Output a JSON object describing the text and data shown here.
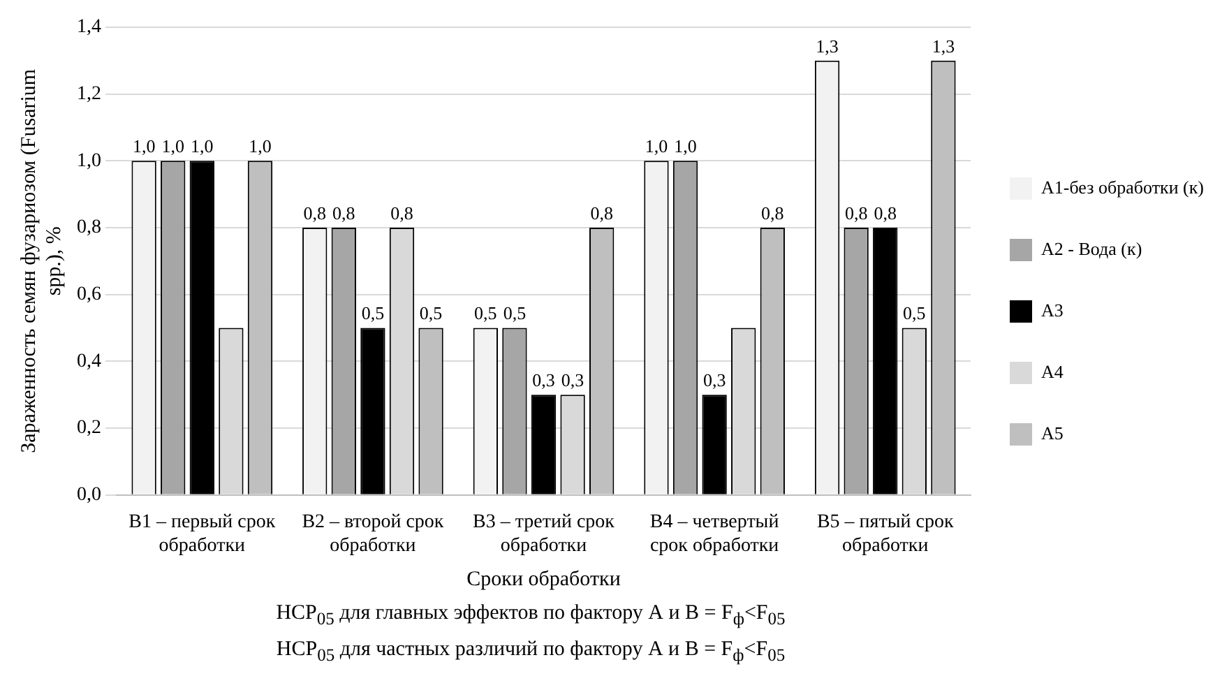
{
  "chart_data": {
    "type": "bar",
    "xlabel": "Сроки обработки",
    "ylabel": "Зараженность семян фузариозом (Fusarium spp.), %",
    "categories": [
      "В1 – первый срок обработки",
      "В2 – второй срок обработки",
      "В3 – третий срок обработки",
      "В4 – четвертый срок обработки",
      "В5 – пятый срок обработки"
    ],
    "series": [
      {
        "name": "А1-без обработки (к)",
        "color": "#f2f2f2",
        "values": [
          1.0,
          0.8,
          0.5,
          1.0,
          1.3
        ],
        "value_labels": [
          "1,0",
          "0,8",
          "0,5",
          "1,0",
          "1,3"
        ]
      },
      {
        "name": "А2 - Вода (к)",
        "color": "#a6a6a6",
        "values": [
          1.0,
          0.8,
          0.5,
          1.0,
          0.8
        ],
        "value_labels": [
          "1,0",
          "0,8",
          "0,5",
          "1,0",
          "0,8"
        ]
      },
      {
        "name": "А3",
        "color": "#000000",
        "values": [
          1.0,
          0.5,
          0.3,
          0.3,
          0.8
        ],
        "value_labels": [
          "1,0",
          "0,5",
          "0,3",
          "0,3",
          "0,8"
        ]
      },
      {
        "name": "А4",
        "color": "#d9d9d9",
        "values": [
          0.5,
          0.8,
          0.3,
          0.5,
          0.5
        ],
        "value_labels": [
          null,
          "0,8",
          "0,3",
          null,
          "0,5"
        ]
      },
      {
        "name": "А5",
        "color": "#bfbfbf",
        "values": [
          1.0,
          0.5,
          0.8,
          0.8,
          1.3
        ],
        "value_labels": [
          "1,0",
          "0,5",
          "0,8",
          "0,8",
          "1,3"
        ]
      }
    ],
    "ylim": [
      0,
      1.4
    ],
    "yticks": [
      {
        "value": 0,
        "label": "0,0"
      },
      {
        "value": 0.2,
        "label": "0,2"
      },
      {
        "value": 0.4,
        "label": "0,4"
      },
      {
        "value": 0.6,
        "label": "0,6"
      },
      {
        "value": 0.8,
        "label": "0,8"
      },
      {
        "value": 1.0,
        "label": "1,0"
      },
      {
        "value": 1.2,
        "label": "1,2"
      },
      {
        "value": 1.4,
        "label": "1,4"
      }
    ],
    "grid": "y",
    "legend": "right",
    "annotations": [
      "НСР$_{05}$ для главных эффектов по фактору А и В = F$_{ф}$<F$_{05}$",
      "НСР$_{05}$ для частных различий по фактору А и В = F$_{ф}$<F$_{05}$"
    ]
  }
}
